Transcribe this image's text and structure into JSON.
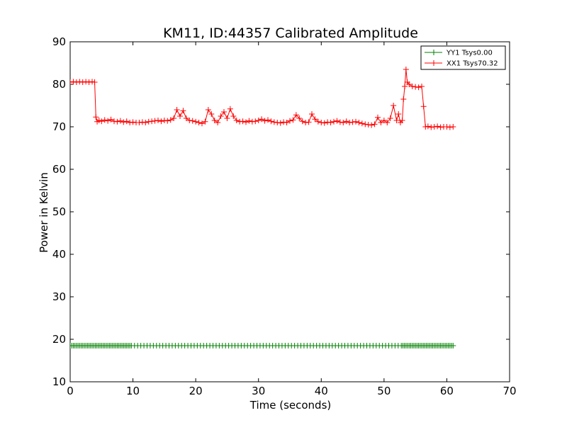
{
  "chart_data": {
    "type": "line",
    "title": "KM11, ID:44357 Calibrated Amplitude",
    "xlabel": "Time (seconds)",
    "ylabel": "Power in Kelvin",
    "xlim": [
      0,
      70
    ],
    "ylim": [
      10,
      90
    ],
    "xticks": [
      0,
      10,
      20,
      30,
      40,
      50,
      60,
      70
    ],
    "yticks": [
      10,
      20,
      30,
      40,
      50,
      60,
      70,
      80,
      90
    ],
    "grid": false,
    "legend_position": "top-right",
    "marker": "+",
    "series": [
      {
        "name": "YY1 Tsys0.00",
        "color": "#008000",
        "x_start": 0,
        "x_end": 61.2,
        "y_constant": 18.5,
        "dense_intervals": [
          [
            0,
            9.5
          ],
          [
            52.5,
            61.2
          ]
        ],
        "dense_step": 0.25,
        "sparse_step": 0.5
      },
      {
        "name": "XX1 Tsys70.32",
        "color": "#ff0000",
        "points": [
          [
            0,
            80.5
          ],
          [
            0.5,
            80.6
          ],
          [
            1,
            80.5
          ],
          [
            1.5,
            80.6
          ],
          [
            2,
            80.5
          ],
          [
            2.5,
            80.6
          ],
          [
            3,
            80.5
          ],
          [
            3.5,
            80.6
          ],
          [
            3.9,
            80.5
          ],
          [
            4.1,
            72.3
          ],
          [
            4.3,
            71.2
          ],
          [
            4.6,
            71.5
          ],
          [
            5,
            71.3
          ],
          [
            5.5,
            71.6
          ],
          [
            6,
            71.4
          ],
          [
            6.5,
            71.7
          ],
          [
            7,
            71.3
          ],
          [
            7.5,
            71.2
          ],
          [
            8,
            71.4
          ],
          [
            8.5,
            71.1
          ],
          [
            9,
            71.3
          ],
          [
            9.5,
            71.0
          ],
          [
            10,
            71.1
          ],
          [
            10.5,
            71.0
          ],
          [
            11,
            71.0
          ],
          [
            11.5,
            71.1
          ],
          [
            12,
            71.0
          ],
          [
            12.5,
            71.2
          ],
          [
            13,
            71.3
          ],
          [
            13.5,
            71.4
          ],
          [
            14,
            71.5
          ],
          [
            14.5,
            71.3
          ],
          [
            15,
            71.5
          ],
          [
            15.5,
            71.4
          ],
          [
            16,
            71.6
          ],
          [
            16.5,
            72.0
          ],
          [
            17,
            74.0
          ],
          [
            17.5,
            72.5
          ],
          [
            18,
            73.8
          ],
          [
            18.5,
            72.0
          ],
          [
            19,
            71.5
          ],
          [
            19.5,
            71.4
          ],
          [
            20,
            71.2
          ],
          [
            20.5,
            71.0
          ],
          [
            21,
            70.8
          ],
          [
            21.5,
            71.2
          ],
          [
            22,
            74.0
          ],
          [
            22.5,
            73.0
          ],
          [
            23,
            71.5
          ],
          [
            23.5,
            71.0
          ],
          [
            24,
            72.5
          ],
          [
            24.5,
            73.5
          ],
          [
            25,
            72.0
          ],
          [
            25.5,
            74.2
          ],
          [
            26,
            72.5
          ],
          [
            26.5,
            71.5
          ],
          [
            27,
            71.2
          ],
          [
            27.5,
            71.3
          ],
          [
            28,
            71.1
          ],
          [
            28.5,
            71.4
          ],
          [
            29,
            71.2
          ],
          [
            29.5,
            71.3
          ],
          [
            30,
            71.5
          ],
          [
            30.5,
            71.8
          ],
          [
            31,
            71.4
          ],
          [
            31.5,
            71.6
          ],
          [
            32,
            71.3
          ],
          [
            32.5,
            71.1
          ],
          [
            33,
            71.0
          ],
          [
            33.5,
            70.9
          ],
          [
            34,
            71.1
          ],
          [
            34.5,
            71.0
          ],
          [
            35,
            71.4
          ],
          [
            35.5,
            71.6
          ],
          [
            36,
            72.8
          ],
          [
            36.5,
            72.0
          ],
          [
            37,
            71.3
          ],
          [
            37.5,
            71.0
          ],
          [
            38,
            71.1
          ],
          [
            38.5,
            73.0
          ],
          [
            39,
            71.8
          ],
          [
            39.5,
            71.2
          ],
          [
            40,
            71.0
          ],
          [
            40.5,
            70.9
          ],
          [
            41,
            71.1
          ],
          [
            41.5,
            71.0
          ],
          [
            42,
            71.2
          ],
          [
            42.5,
            71.4
          ],
          [
            43,
            71.1
          ],
          [
            43.5,
            71.0
          ],
          [
            44,
            71.3
          ],
          [
            44.5,
            71.0
          ],
          [
            45,
            71.1
          ],
          [
            45.5,
            71.2
          ],
          [
            46,
            71.0
          ],
          [
            46.5,
            70.8
          ],
          [
            47,
            70.6
          ],
          [
            47.5,
            70.5
          ],
          [
            48,
            70.4
          ],
          [
            48.5,
            70.6
          ],
          [
            49,
            72.2
          ],
          [
            49.5,
            71.0
          ],
          [
            50,
            71.5
          ],
          [
            50.5,
            71.0
          ],
          [
            51,
            72.0
          ],
          [
            51.5,
            75.0
          ],
          [
            52,
            71.5
          ],
          [
            52.3,
            73.0
          ],
          [
            52.6,
            71.0
          ],
          [
            52.9,
            71.5
          ],
          [
            53.1,
            76.5
          ],
          [
            53.3,
            79.5
          ],
          [
            53.5,
            83.5
          ],
          [
            53.7,
            80.5
          ],
          [
            54,
            80.0
          ],
          [
            54.5,
            79.5
          ],
          [
            55,
            79.4
          ],
          [
            55.5,
            79.3
          ],
          [
            56,
            79.5
          ],
          [
            56.3,
            74.8
          ],
          [
            56.6,
            70.0
          ],
          [
            57,
            70.1
          ],
          [
            57.5,
            69.9
          ],
          [
            58,
            70.0
          ],
          [
            58.5,
            70.1
          ],
          [
            59,
            69.9
          ],
          [
            59.5,
            70.0
          ],
          [
            60,
            70.0
          ],
          [
            60.5,
            69.9
          ],
          [
            61,
            70.0
          ]
        ]
      }
    ]
  }
}
